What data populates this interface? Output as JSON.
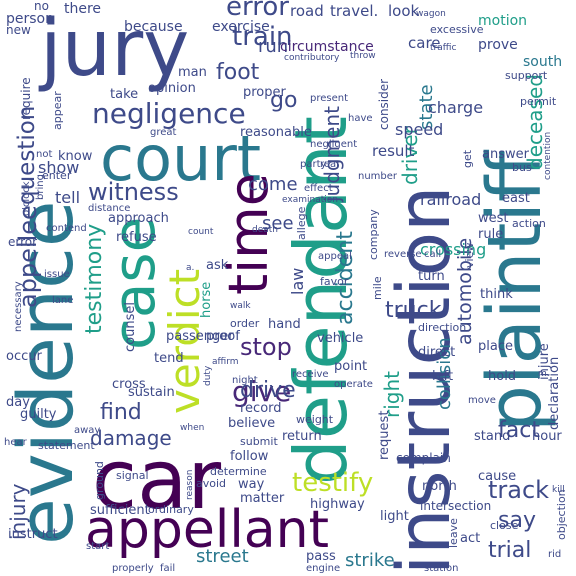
{
  "words": [
    {
      "text": "instruction",
      "color": "#3e4a89"
    },
    {
      "text": "plaintiff",
      "color": "#2a788e"
    },
    {
      "text": "defendant",
      "color": "#1f9e89"
    },
    {
      "text": "evidence",
      "color": "#2a788e"
    },
    {
      "text": "car",
      "color": "#440154"
    },
    {
      "text": "jury",
      "color": "#3e4a89"
    },
    {
      "text": "court",
      "color": "#2a788e"
    },
    {
      "text": "appellant",
      "color": "#440154"
    },
    {
      "text": "case",
      "color": "#1f9e89"
    },
    {
      "text": "verdict",
      "color": "#bddf26"
    },
    {
      "text": "time",
      "color": "#440154"
    },
    {
      "text": "negligence",
      "color": "#3e4a89"
    },
    {
      "text": "error",
      "color": "#3e4a89"
    },
    {
      "text": "train",
      "color": "#3e4a89"
    },
    {
      "text": "question",
      "color": "#3e4a89"
    },
    {
      "text": "appellee",
      "color": "#3e4a89"
    },
    {
      "text": "witness",
      "color": "#3e4a89"
    },
    {
      "text": "testimony",
      "color": "#1f9e89"
    },
    {
      "text": "judgment",
      "color": "#3e4a89"
    },
    {
      "text": "accident",
      "color": "#2a788e"
    },
    {
      "text": "deceased",
      "color": "#1f9e89"
    },
    {
      "text": "driver",
      "color": "#1f9e89"
    },
    {
      "text": "state",
      "color": "#2a788e"
    },
    {
      "text": "automobile",
      "color": "#3e4a89"
    },
    {
      "text": "give",
      "color": "#482878"
    },
    {
      "text": "testify",
      "color": "#bddf26"
    },
    {
      "text": "drive",
      "color": "#3e4a89"
    },
    {
      "text": "stop",
      "color": "#482878"
    },
    {
      "text": "find",
      "color": "#3e4a89"
    },
    {
      "text": "damage",
      "color": "#3e4a89"
    },
    {
      "text": "track",
      "color": "#3e4a89"
    },
    {
      "text": "fact",
      "color": "#3e4a89"
    },
    {
      "text": "truck",
      "color": "#3e4a89"
    },
    {
      "text": "right",
      "color": "#1f9e89"
    },
    {
      "text": "say",
      "color": "#3e4a89"
    },
    {
      "text": "trial",
      "color": "#3e4a89"
    },
    {
      "text": "injury",
      "color": "#3e4a89"
    },
    {
      "text": "street",
      "color": "#2a788e"
    },
    {
      "text": "strike",
      "color": "#2a788e"
    },
    {
      "text": "collision",
      "color": "#2a788e"
    },
    {
      "text": "foot",
      "color": "#3e4a89"
    },
    {
      "text": "go",
      "color": "#3e4a89"
    },
    {
      "text": "run",
      "color": "#3e4a89"
    },
    {
      "text": "come",
      "color": "#3e4a89"
    },
    {
      "text": "see",
      "color": "#3e4a89"
    },
    {
      "text": "law",
      "color": "#3e4a89"
    },
    {
      "text": "show",
      "color": "#3e4a89"
    },
    {
      "text": "tell",
      "color": "#3e4a89"
    },
    {
      "text": "railroad",
      "color": "#3e4a89"
    },
    {
      "text": "crossing",
      "color": "#1f9e89"
    },
    {
      "text": "speed",
      "color": "#3e4a89"
    },
    {
      "text": "charge",
      "color": "#3e4a89"
    },
    {
      "text": "result",
      "color": "#3e4a89"
    },
    {
      "text": "care",
      "color": "#3e4a89"
    },
    {
      "text": "prove",
      "color": "#3e4a89"
    },
    {
      "text": "south",
      "color": "#2a788e"
    },
    {
      "text": "motion",
      "color": "#1f9e89"
    },
    {
      "text": "road",
      "color": "#3e4a89"
    },
    {
      "text": "travel.",
      "color": "#3e4a89"
    },
    {
      "text": "look",
      "color": "#3e4a89"
    },
    {
      "text": "exercise",
      "color": "#3e4a89"
    },
    {
      "text": "because",
      "color": "#3e4a89"
    },
    {
      "text": "there",
      "color": "#3e4a89"
    },
    {
      "text": "person",
      "color": "#3e4a89"
    },
    {
      "text": "circumstance",
      "color": "#482878"
    },
    {
      "text": "man",
      "color": "#3e4a89"
    },
    {
      "text": "opinion",
      "color": "#3e4a89"
    },
    {
      "text": "take",
      "color": "#3e4a89"
    },
    {
      "text": "proper",
      "color": "#3e4a89"
    },
    {
      "text": "reasonable",
      "color": "#3e4a89"
    },
    {
      "text": "know",
      "color": "#3e4a89"
    },
    {
      "text": "approach",
      "color": "#3e4a89"
    },
    {
      "text": "refuse",
      "color": "#3e4a89"
    },
    {
      "text": "ask",
      "color": "#3e4a89"
    },
    {
      "text": "horse",
      "color": "#1f9e89"
    },
    {
      "text": "hand",
      "color": "#3e4a89"
    },
    {
      "text": "counsel",
      "color": "#3e4a89"
    },
    {
      "text": "sustain",
      "color": "#3e4a89"
    },
    {
      "text": "passenger",
      "color": "#3e4a89"
    },
    {
      "text": "record",
      "color": "#3e4a89"
    },
    {
      "text": "vehicle",
      "color": "#3e4a89"
    },
    {
      "text": "point",
      "color": "#3e4a89"
    },
    {
      "text": "direct",
      "color": "#3e4a89"
    },
    {
      "text": "place",
      "color": "#3e4a89"
    },
    {
      "text": "hold",
      "color": "#3e4a89"
    },
    {
      "text": "left",
      "color": "#3e4a89"
    },
    {
      "text": "stand",
      "color": "#3e4a89"
    },
    {
      "text": "hour",
      "color": "#3e4a89"
    },
    {
      "text": "cause",
      "color": "#3e4a89"
    },
    {
      "text": "north",
      "color": "#3e4a89"
    },
    {
      "text": "intersection",
      "color": "#3e4a89"
    },
    {
      "text": "light",
      "color": "#3e4a89"
    },
    {
      "text": "act",
      "color": "#3e4a89"
    },
    {
      "text": "highway",
      "color": "#3e4a89"
    },
    {
      "text": "follow",
      "color": "#3e4a89"
    },
    {
      "text": "way",
      "color": "#3e4a89"
    },
    {
      "text": "matter",
      "color": "#3e4a89"
    },
    {
      "text": "sufficient",
      "color": "#3e4a89"
    },
    {
      "text": "instruct",
      "color": "#3e4a89"
    },
    {
      "text": "guilty",
      "color": "#3e4a89"
    },
    {
      "text": "occur",
      "color": "#3e4a89"
    },
    {
      "text": "cross",
      "color": "#3e4a89"
    },
    {
      "text": "proof",
      "color": "#3e4a89"
    },
    {
      "text": "tend",
      "color": "#3e4a89"
    },
    {
      "text": "believe",
      "color": "#3e4a89"
    },
    {
      "text": "day",
      "color": "#3e4a89"
    },
    {
      "text": "west",
      "color": "#3e4a89"
    },
    {
      "text": "east",
      "color": "#3e4a89"
    },
    {
      "text": "rule",
      "color": "#3e4a89"
    },
    {
      "text": "turn",
      "color": "#3e4a89"
    },
    {
      "text": "think",
      "color": "#3e4a89"
    },
    {
      "text": "injure",
      "color": "#3e4a89"
    },
    {
      "text": "declaration",
      "color": "#3e4a89"
    },
    {
      "text": "answer",
      "color": "#3e4a89"
    },
    {
      "text": "return",
      "color": "#3e4a89"
    },
    {
      "text": "request",
      "color": "#3e4a89"
    },
    {
      "text": "complain",
      "color": "#3e4a89"
    },
    {
      "text": "pass",
      "color": "#3e4a89"
    },
    {
      "text": "error",
      "color": "#3e4a89"
    },
    {
      "text": "require",
      "color": "#3e4a89"
    },
    {
      "text": "new",
      "color": "#3e4a89"
    },
    {
      "text": "no",
      "color": "#3e4a89"
    },
    {
      "text": "enter",
      "color": "#3e4a89"
    },
    {
      "text": "appear",
      "color": "#3e4a89"
    },
    {
      "text": "consider",
      "color": "#3e4a89"
    },
    {
      "text": "excessive",
      "color": "#3e4a89"
    },
    {
      "text": "support",
      "color": "#3e4a89"
    },
    {
      "text": "permit",
      "color": "#3e4a89"
    },
    {
      "text": "bus",
      "color": "#3e4a89"
    },
    {
      "text": "get",
      "color": "#3e4a89"
    },
    {
      "text": "company",
      "color": "#3e4a89"
    },
    {
      "text": "allege",
      "color": "#3e4a89"
    },
    {
      "text": "mile",
      "color": "#3e4a89"
    },
    {
      "text": "view",
      "color": "#3e4a89"
    },
    {
      "text": "action",
      "color": "#3e4a89"
    },
    {
      "text": "favor",
      "color": "#3e4a89"
    },
    {
      "text": "order",
      "color": "#3e4a89"
    },
    {
      "text": "direction",
      "color": "#3e4a89"
    },
    {
      "text": "leave",
      "color": "#3e4a89"
    },
    {
      "text": "close",
      "color": "#3e4a89"
    },
    {
      "text": "objection",
      "color": "#3e4a89"
    },
    {
      "text": "submit",
      "color": "#3e4a89"
    },
    {
      "text": "weight",
      "color": "#3e4a89"
    },
    {
      "text": "determine",
      "color": "#3e4a89"
    },
    {
      "text": "avoid",
      "color": "#3e4a89"
    },
    {
      "text": "ordinary",
      "color": "#3e4a89"
    },
    {
      "text": "signal",
      "color": "#3e4a89"
    },
    {
      "text": "ground",
      "color": "#3e4a89"
    },
    {
      "text": "statement",
      "color": "#3e4a89"
    },
    {
      "text": "hear",
      "color": "#3e4a89"
    },
    {
      "text": "away",
      "color": "#3e4a89"
    },
    {
      "text": "start",
      "color": "#3e4a89"
    },
    {
      "text": "properly",
      "color": "#3e4a89"
    },
    {
      "text": "fail",
      "color": "#3e4a89"
    },
    {
      "text": "engine",
      "color": "#3e4a89"
    },
    {
      "text": "station",
      "color": "#3e4a89"
    },
    {
      "text": "rid",
      "color": "#3e4a89"
    },
    {
      "text": "receive",
      "color": "#3e4a89"
    },
    {
      "text": "operate",
      "color": "#3e4a89"
    },
    {
      "text": "night",
      "color": "#3e4a89"
    },
    {
      "text": "move",
      "color": "#3e4a89"
    },
    {
      "text": "lane",
      "color": "#3e4a89"
    },
    {
      "text": "necessary",
      "color": "#3e4a89"
    },
    {
      "text": "issue",
      "color": "#3e4a89"
    },
    {
      "text": "contend",
      "color": "#3e4a89"
    },
    {
      "text": "distance",
      "color": "#3e4a89"
    },
    {
      "text": "o'clock",
      "color": "#3e4a89"
    },
    {
      "text": "bring",
      "color": "#3e4a89"
    },
    {
      "text": "not",
      "color": "#3e4a89"
    },
    {
      "text": "great",
      "color": "#3e4a89"
    },
    {
      "text": "negligent",
      "color": "#3e4a89"
    },
    {
      "text": "party",
      "color": "#3e4a89"
    },
    {
      "text": "rear",
      "color": "#3e4a89"
    },
    {
      "text": "effect",
      "color": "#3e4a89"
    },
    {
      "text": "examination",
      "color": "#3e4a89"
    },
    {
      "text": "number",
      "color": "#3e4a89"
    },
    {
      "text": "present",
      "color": "#3e4a89"
    },
    {
      "text": "have",
      "color": "#3e4a89"
    },
    {
      "text": "contributory",
      "color": "#3e4a89"
    },
    {
      "text": "throw",
      "color": "#3e4a89"
    },
    {
      "text": "wagon",
      "color": "#3e4a89"
    },
    {
      "text": "traffic",
      "color": "#3e4a89"
    },
    {
      "text": "reverse",
      "color": "#3e4a89"
    },
    {
      "text": "call",
      "color": "#3e4a89"
    },
    {
      "text": "appeal",
      "color": "#3e4a89"
    },
    {
      "text": "affirm",
      "color": "#3e4a89"
    },
    {
      "text": "walk",
      "color": "#3e4a89"
    },
    {
      "text": "death",
      "color": "#3e4a89"
    },
    {
      "text": "count",
      "color": "#3e4a89"
    },
    {
      "text": "contention",
      "color": "#3e4a89"
    },
    {
      "text": "duty",
      "color": "#3e4a89"
    },
    {
      "text": "reason",
      "color": "#3e4a89"
    },
    {
      "text": "kill",
      "color": "#3e4a89"
    },
    {
      "text": "a.",
      "color": "#3e4a89"
    },
    {
      "text": "m.",
      "color": "#3e4a89"
    },
    {
      "text": "when",
      "color": "#3e4a89"
    }
  ]
}
